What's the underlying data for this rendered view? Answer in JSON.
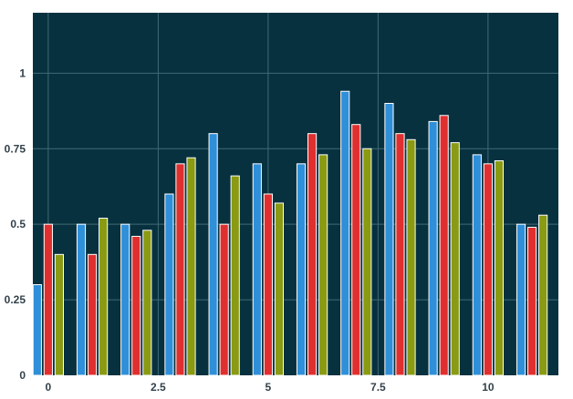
{
  "chart_data": {
    "type": "bar",
    "x": [
      0,
      1,
      2,
      3,
      4,
      5,
      6,
      7,
      8,
      9,
      10,
      11
    ],
    "series": [
      {
        "color": "#2f8fd8",
        "values": [
          0.3,
          0.5,
          0.5,
          0.6,
          0.8,
          0.7,
          0.7,
          0.94,
          0.9,
          0.84,
          0.73,
          0.5
        ]
      },
      {
        "color": "#e02f2f",
        "values": [
          0.5,
          0.4,
          0.46,
          0.7,
          0.5,
          0.6,
          0.8,
          0.83,
          0.8,
          0.86,
          0.7,
          0.49
        ]
      },
      {
        "color": "#8a9a12",
        "values": [
          0.4,
          0.52,
          0.48,
          0.72,
          0.66,
          0.57,
          0.73,
          0.75,
          0.78,
          0.77,
          0.71,
          0.53
        ]
      }
    ],
    "x_ticks": [
      {
        "value": 0,
        "label": "0"
      },
      {
        "value": 2.5,
        "label": "2.5"
      },
      {
        "value": 5,
        "label": "5"
      },
      {
        "value": 7.5,
        "label": "7.5"
      },
      {
        "value": 10,
        "label": "10"
      }
    ],
    "y_ticks": [
      {
        "value": 0,
        "label": "0"
      },
      {
        "value": 0.25,
        "label": "0.25"
      },
      {
        "value": 0.5,
        "label": "0.5"
      },
      {
        "value": 0.75,
        "label": "0.75"
      },
      {
        "value": 1,
        "label": "1"
      }
    ],
    "xlim": [
      -0.35,
      11.6
    ],
    "ylim": [
      0,
      1.2
    ],
    "grid": true,
    "title": "",
    "xlabel": "",
    "ylabel": "",
    "plot_background": "#08313f",
    "grid_color": "#3f6a75",
    "bar_outline": "#ffffff"
  }
}
